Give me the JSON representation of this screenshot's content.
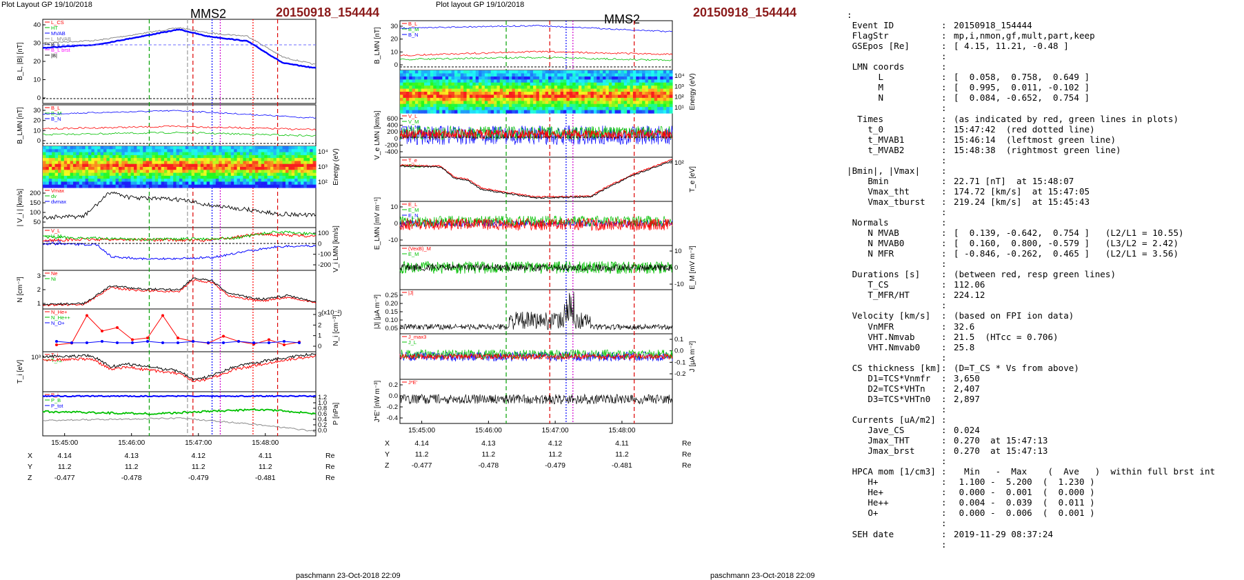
{
  "left_figure": {
    "header": "Plot Layout GP 19/10/2018",
    "spacecraft": "MMS2",
    "event": "20150918_154444",
    "footer": "paschmann 23-Oct-2018 22:09",
    "time_ticks": [
      "15:45:00",
      "15:46:00",
      "15:47:00",
      "15:48:00"
    ],
    "position_rows": [
      {
        "label": "X",
        "values": [
          "4.14",
          "4.13",
          "4.12",
          "4.11"
        ],
        "unit": "Re"
      },
      {
        "label": "Y",
        "values": [
          "11.2",
          "11.2",
          "11.2",
          "11.2"
        ],
        "unit": "Re"
      },
      {
        "label": "Z",
        "values": [
          "-0.477",
          "-0.478",
          "-0.479",
          "-0.481"
        ],
        "unit": "Re"
      }
    ],
    "panels": [
      {
        "left_title": "B_L, |B| [nT]",
        "right_title": "",
        "left_ticks": [
          "40",
          "30",
          "20",
          "10",
          "0"
        ],
        "right_ticks": [],
        "legend": [
          "L_CS",
          "HT",
          "MVAB",
          "L_MVAB",
          "B_L",
          "B_L brst",
          "|B|"
        ]
      },
      {
        "left_title": "B_LMN [nT]",
        "right_title": "",
        "left_ticks": [
          "30",
          "20",
          "10",
          "0"
        ],
        "right_ticks": [],
        "legend": [
          "B_L",
          "B_M",
          "B_N"
        ]
      },
      {
        "left_title": "",
        "right_title": "Energy (eV)",
        "left_ticks": [],
        "right_ticks": [
          "10⁴",
          "10³",
          "10²"
        ],
        "legend": []
      },
      {
        "left_title": "| V_i | [km/s]",
        "right_title": "",
        "left_ticks": [
          "200",
          "150",
          "100",
          "50"
        ],
        "right_ticks": [],
        "legend": [
          "Vmax",
          "dv",
          "dvmax"
        ]
      },
      {
        "left_title": "",
        "right_title": "V_i LMN [km/s]",
        "left_ticks": [],
        "right_ticks": [
          "100",
          "0",
          "-100",
          "-200"
        ],
        "legend": [
          "V_L",
          "V_M",
          "V_N"
        ]
      },
      {
        "left_title": "N [cm⁻³]",
        "right_title": "",
        "left_ticks": [
          "3",
          "2",
          "1"
        ],
        "right_ticks": [],
        "legend": [
          "Ne",
          "Ni"
        ]
      },
      {
        "left_title": "",
        "right_title": "N_i [cm⁻³]",
        "left_ticks": [],
        "right_ticks": [
          "3",
          "2",
          "1",
          "0"
        ],
        "legend": [
          "N_He+",
          "N_He++",
          "N_O+"
        ],
        "scale_note": "(x10⁻²)"
      },
      {
        "left_title": "T_i [eV]",
        "right_title": "",
        "left_ticks": [
          "10³"
        ],
        "right_ticks": [],
        "legend": [
          "T_i",
          "T_i⊥"
        ]
      },
      {
        "left_title": "",
        "right_title": "P [nPa]",
        "left_ticks": [],
        "right_ticks": [
          "1.2",
          "1.0",
          "0.8",
          "0.6",
          "0.4",
          "0.2",
          "0.0"
        ],
        "legend": [
          "P_i",
          "P_B",
          "P_tot"
        ]
      }
    ]
  },
  "right_figure": {
    "header": "Plot layout GP 19/10/2018",
    "spacecraft": "MMS2",
    "event": "20150918_154444",
    "footer": "paschmann 23-Oct-2018 22:09",
    "time_ticks": [
      "15:45:00",
      "15:46:00",
      "15:47:00",
      "15:48:00"
    ],
    "position_rows": [
      {
        "label": "X",
        "values": [
          "4.14",
          "4.13",
          "4.12",
          "4.11"
        ],
        "unit": "Re"
      },
      {
        "label": "Y",
        "values": [
          "11.2",
          "11.2",
          "11.2",
          "11.2"
        ],
        "unit": "Re"
      },
      {
        "label": "Z",
        "values": [
          "-0.477",
          "-0.478",
          "-0.479",
          "-0.481"
        ],
        "unit": "Re"
      }
    ],
    "panels": [
      {
        "left_title": "B_LMN [nT]",
        "right_title": "",
        "left_ticks": [
          "30",
          "20",
          "10",
          "0"
        ],
        "right_ticks": [],
        "legend": [
          "B_L",
          "B_M",
          "B_N"
        ]
      },
      {
        "left_title": "",
        "right_title": "Energy (eV)",
        "left_ticks": [],
        "right_ticks": [
          "10⁴",
          "10³",
          "10²",
          "10¹"
        ],
        "legend": []
      },
      {
        "left_title": "V_e LMN [km/s]",
        "right_title": "",
        "left_ticks": [
          "600",
          "400",
          "200",
          "0",
          "-200",
          "-400"
        ],
        "right_ticks": [],
        "legend": [
          "V_L",
          "V_M",
          "V_N"
        ]
      },
      {
        "left_title": "",
        "right_title": "T_e [eV]",
        "left_ticks": [],
        "right_ticks": [
          "10²"
        ],
        "legend": [
          "T_e",
          "T_e⊥"
        ]
      },
      {
        "left_title": "E_LMN [mV m⁻¹]",
        "right_title": "",
        "left_ticks": [
          "10",
          "0",
          "-10"
        ],
        "right_ticks": [],
        "legend": [
          "E_L",
          "E_M",
          "E_N"
        ]
      },
      {
        "left_title": "",
        "right_title": "E_M [mV m⁻²]",
        "left_ticks": [],
        "right_ticks": [
          "10",
          "0",
          "-10"
        ],
        "legend": [
          "(VexB)_M",
          "E_M"
        ]
      },
      {
        "left_title": "|J| [μA m⁻²]",
        "right_title": "",
        "left_ticks": [
          "0.25",
          "0.20",
          "0.15",
          "0.10",
          "0.05"
        ],
        "right_ticks": [],
        "legend": [
          "|J|"
        ]
      },
      {
        "left_title": "",
        "right_title": "J [μA m⁻²]",
        "left_ticks": [],
        "right_ticks": [
          "0.1",
          "0.0",
          "-0.1",
          "-0.2"
        ],
        "legend": [
          "J_max3",
          "J_L"
        ]
      },
      {
        "left_title": "J*E' [nW m⁻³]",
        "right_title": "",
        "left_ticks": [
          "0.2",
          "0.0",
          "-0.2",
          "-0.4"
        ],
        "right_ticks": [],
        "legend": [
          "J*E'"
        ]
      }
    ]
  },
  "info_lines": [
    {
      "row": 0,
      "key": ":",
      "colon": "",
      "val": ""
    },
    {
      "row": 1,
      "key": " Event ID",
      "colon": ":",
      "val": "20150918_154444"
    },
    {
      "row": 2,
      "key": " FlagStr",
      "colon": ":",
      "val": "mp,i,nmon,gf,mult,part,keep"
    },
    {
      "row": 3,
      "key": " GSEpos [Re]",
      "colon": ":",
      "val": "[ 4.15, 11.21, -0.48 ]"
    },
    {
      "row": 4,
      "key": "",
      "colon": ":",
      "val": ""
    },
    {
      "row": 5,
      "key": " LMN coords",
      "colon": ":",
      "val": ""
    },
    {
      "row": 6,
      "key": "      L",
      "colon": ":",
      "val": "[  0.058,  0.758,  0.649 ]"
    },
    {
      "row": 7,
      "key": "      M",
      "colon": ":",
      "val": "[  0.995,  0.011, -0.102 ]"
    },
    {
      "row": 8,
      "key": "      N",
      "colon": ":",
      "val": "[  0.084, -0.652,  0.754 ]"
    },
    {
      "row": 9,
      "key": "",
      "colon": ":",
      "val": ""
    },
    {
      "row": 10,
      "key": "  Times",
      "colon": ":",
      "val": "(as indicated by red, green lines in plots)"
    },
    {
      "row": 11,
      "key": "    t_0",
      "colon": ":",
      "val": "15:47:42  (red dotted line)"
    },
    {
      "row": 12,
      "key": "    t_MVAB1",
      "colon": ":",
      "val": "15:46:14  (leftmost green line)"
    },
    {
      "row": 13,
      "key": "    t_MVAB2",
      "colon": ":",
      "val": "15:48:38  (rightmost green line)"
    },
    {
      "row": 14,
      "key": "",
      "colon": ":",
      "val": ""
    },
    {
      "row": 15,
      "key": "|Bmin|, |Vmax|",
      "colon": ":",
      "val": ""
    },
    {
      "row": 16,
      "key": "    Bmin",
      "colon": ":",
      "val": "22.71 [nT]  at 15:48:07"
    },
    {
      "row": 17,
      "key": "    Vmax_tht",
      "colon": ":",
      "val": "174.72 [km/s]  at 15:47:05"
    },
    {
      "row": 18,
      "key": "    Vmax_tburst",
      "colon": ":",
      "val": "219.24 [km/s]  at 15:45:43"
    },
    {
      "row": 19,
      "key": "",
      "colon": ":",
      "val": ""
    },
    {
      "row": 20,
      "key": " Normals",
      "colon": ":",
      "val": ""
    },
    {
      "row": 21,
      "key": "    N MVAB",
      "colon": ":",
      "val": "[  0.139, -0.642,  0.754 ]   (L2/L1 = 10.55)"
    },
    {
      "row": 22,
      "key": "    N MVAB0",
      "colon": ":",
      "val": "[  0.160,  0.800, -0.579 ]   (L3/L2 = 2.42)"
    },
    {
      "row": 23,
      "key": "    N MFR",
      "colon": ":",
      "val": "[ -0.846, -0.262,  0.465 ]   (L2/L1 = 3.56)"
    },
    {
      "row": 24,
      "key": "",
      "colon": ":",
      "val": ""
    },
    {
      "row": 25,
      "key": " Durations [s]",
      "colon": ":",
      "val": "(between red, resp green lines)"
    },
    {
      "row": 26,
      "key": "    T_CS",
      "colon": ":",
      "val": "112.06"
    },
    {
      "row": 27,
      "key": "    T_MFR/HT",
      "colon": ":",
      "val": "224.12"
    },
    {
      "row": 28,
      "key": "",
      "colon": ":",
      "val": ""
    },
    {
      "row": 29,
      "key": " Velocity [km/s]",
      "colon": ":",
      "val": "(based on FPI ion data)"
    },
    {
      "row": 30,
      "key": "    VnMFR",
      "colon": ":",
      "val": "32.6"
    },
    {
      "row": 31,
      "key": "    VHT.Nmvab",
      "colon": ":",
      "val": "21.5  (HTcc = 0.706)"
    },
    {
      "row": 32,
      "key": "    VHT.Nmvab0",
      "colon": ":",
      "val": "25.8"
    },
    {
      "row": 33,
      "key": "",
      "colon": ":",
      "val": ""
    },
    {
      "row": 34,
      "key": " CS thickness [km]",
      "colon": ":",
      "val": "(D=T_CS * Vs from above)"
    },
    {
      "row": 35,
      "key": "    D1=TCS*Vnmfr",
      "colon": ":",
      "val": "3,650"
    },
    {
      "row": 36,
      "key": "    D2=TCS*VHTn",
      "colon": ":",
      "val": "2,407"
    },
    {
      "row": 37,
      "key": "    D3=TCS*VHTn0",
      "colon": ":",
      "val": "2,897"
    },
    {
      "row": 38,
      "key": "",
      "colon": ":",
      "val": ""
    },
    {
      "row": 39,
      "key": " Currents [uA/m2]",
      "colon": ":",
      "val": ""
    },
    {
      "row": 40,
      "key": "    Jave_CS",
      "colon": ":",
      "val": "0.024"
    },
    {
      "row": 41,
      "key": "    Jmax_THT",
      "colon": ":",
      "val": "0.270  at 15:47:13"
    },
    {
      "row": 42,
      "key": "    Jmax_brst",
      "colon": ":",
      "val": "0.270  at 15:47:13"
    },
    {
      "row": 43,
      "key": "",
      "colon": ":",
      "val": ""
    },
    {
      "row": 44,
      "key": " HPCA mom [1/cm3]",
      "colon": ":",
      "val": "  Min   -  Max    (  Ave   )  within full brst int"
    },
    {
      "row": 45,
      "key": "    H+",
      "colon": ":",
      "val": " 1.100 -  5.200  (  1.230 )"
    },
    {
      "row": 46,
      "key": "    He+",
      "colon": ":",
      "val": " 0.000 -  0.001  (  0.000 )"
    },
    {
      "row": 47,
      "key": "    He++",
      "colon": ":",
      "val": " 0.004 -  0.039  (  0.011 )"
    },
    {
      "row": 48,
      "key": "    O+",
      "colon": ":",
      "val": " 0.000 -  0.006  (  0.001 )"
    },
    {
      "row": 49,
      "key": "",
      "colon": ":",
      "val": ""
    },
    {
      "row": 50,
      "key": " SEH date",
      "colon": ":",
      "val": "2019-11-29 08:37:24"
    },
    {
      "row": 51,
      "key": "",
      "colon": ":",
      "val": ""
    }
  ],
  "chart_data": [
    {
      "type": "line",
      "title": "MMS2 20150918_154444",
      "time_range": [
        "15:44:40",
        "15:48:45"
      ],
      "markers": {
        "t_0": "15:47:42",
        "t_MVAB1": "15:46:14",
        "t_MVAB2": "15:48:38"
      },
      "series": [
        {
          "name": "|B|",
          "x": [
            "15:44:40",
            "15:45:30",
            "15:46:20",
            "15:46:50",
            "15:47:10",
            "15:47:40",
            "15:48:07",
            "15:48:45"
          ],
          "values": [
            29,
            32,
            37,
            39,
            35,
            33,
            23,
            19
          ]
        },
        {
          "name": "B_L",
          "x": [
            "15:44:40",
            "15:45:30",
            "15:46:20",
            "15:46:50",
            "15:47:10",
            "15:47:40",
            "15:48:07",
            "15:48:45"
          ],
          "values": [
            27,
            30,
            35,
            37,
            33,
            30,
            22,
            18
          ]
        },
        {
          "name": "Vmax",
          "x": [
            "15:45:43",
            "15:47:05"
          ],
          "values": [
            219.24,
            174.72
          ]
        }
      ]
    },
    {
      "type": "line",
      "title": "MMS2 20150918_154444",
      "time_range": [
        "15:44:40",
        "15:48:45"
      ],
      "series": [
        {
          "name": "|J|",
          "x": [
            "15:47:13"
          ],
          "values": [
            0.27
          ]
        }
      ]
    }
  ]
}
